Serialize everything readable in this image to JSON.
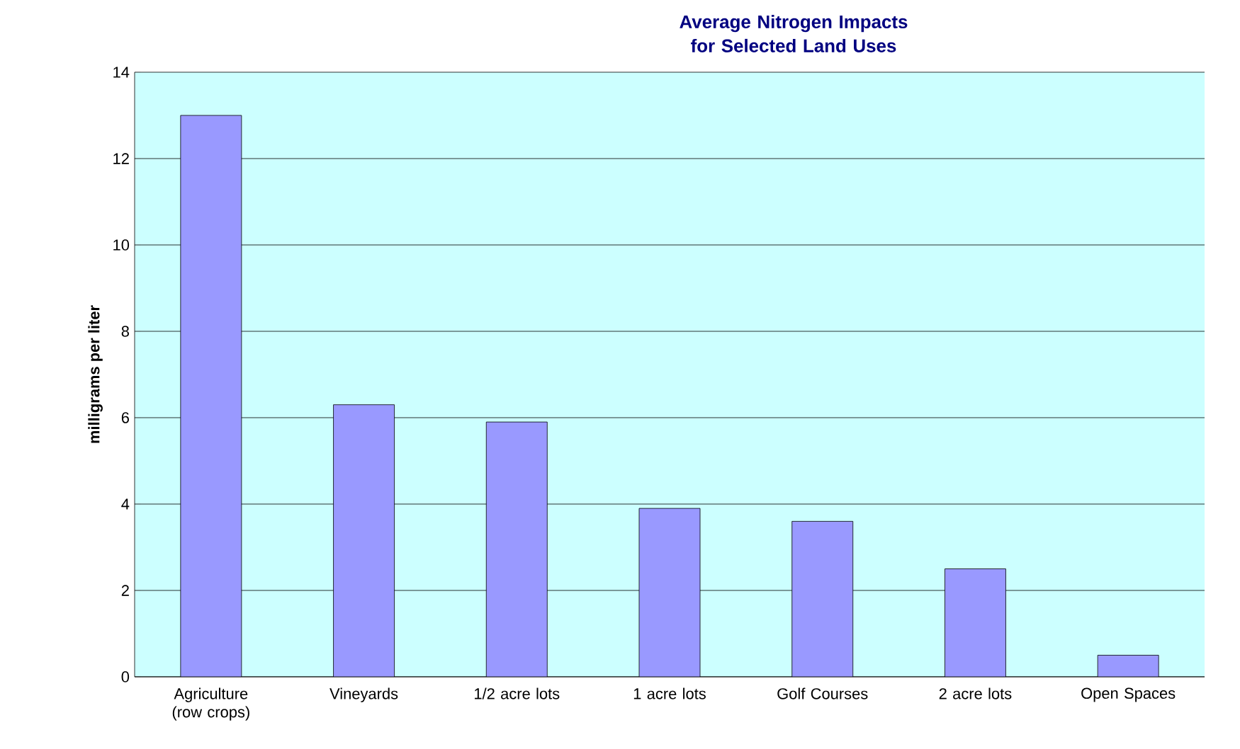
{
  "chart_data": {
    "type": "bar",
    "title": "Average Nitrogen Impacts for Selected Land Uses",
    "ylabel": "milligrams per liter",
    "categories": [
      "Agriculture (row crops)",
      "Vineyards",
      "1/2 acre lots",
      "1 acre lots",
      "Golf Courses",
      "2 acre lots",
      "Open Spaces"
    ],
    "values": [
      13.0,
      6.3,
      5.9,
      3.9,
      3.6,
      2.5,
      0.5
    ],
    "color": "#9999ff",
    "ylim": [
      0,
      14
    ],
    "yticks": [
      0,
      2,
      4,
      6,
      8,
      10,
      12,
      14
    ],
    "grid": "y"
  }
}
